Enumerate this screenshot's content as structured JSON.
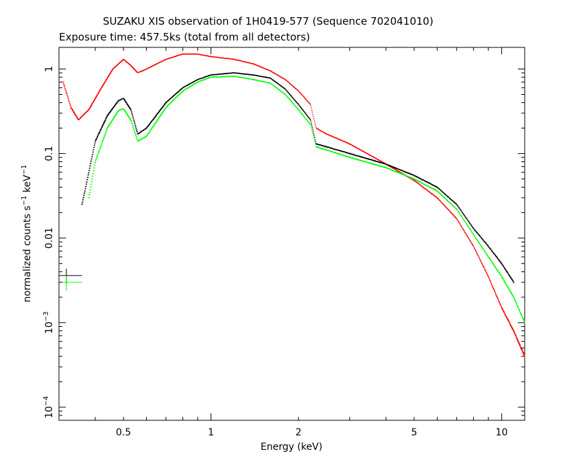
{
  "title": "SUZAKU XIS observation of 1H0419-577 (Sequence 702041010)",
  "subtitle": "Exposure time: 457.5ks (total from all detectors)",
  "chart_data": {
    "type": "scatter",
    "title": "SUZAKU XIS observation of 1H0419-577 (Sequence 702041010)",
    "subtitle": "Exposure time: 457.5ks (total from all detectors)",
    "xlabel": "Energy (keV)",
    "ylabel": "normalized counts s^-1 keV^-1",
    "xscale": "log",
    "yscale": "log",
    "xlim": [
      0.3,
      12
    ],
    "ylim": [
      7e-05,
      1.8
    ],
    "grid": false,
    "legend": "none",
    "x_ticks": [
      {
        "value": 0.5,
        "label": "0.5"
      },
      {
        "value": 1,
        "label": "1"
      },
      {
        "value": 2,
        "label": "2"
      },
      {
        "value": 5,
        "label": "5"
      },
      {
        "value": 10,
        "label": "10"
      }
    ],
    "y_ticks": [
      {
        "value": 1,
        "label": "1"
      },
      {
        "value": 0.1,
        "label": "0.1"
      },
      {
        "value": 0.01,
        "label": "0.01"
      },
      {
        "value": 0.001,
        "label": "10",
        "exp": "−3"
      },
      {
        "value": 0.0001,
        "label": "10",
        "exp": "−4"
      }
    ],
    "series": [
      {
        "color": "#ff0000",
        "x": [
          0.31,
          0.33,
          0.35,
          0.38,
          0.42,
          0.46,
          0.5,
          0.53,
          0.56,
          0.6,
          0.7,
          0.8,
          0.9,
          1.0,
          1.2,
          1.4,
          1.6,
          1.8,
          2.0,
          2.2,
          2.3,
          2.5,
          3.0,
          4.0,
          5.0,
          6.0,
          7.0,
          8.0,
          9.0,
          10.0,
          11.0,
          12.0
        ],
        "y": [
          0.7,
          0.35,
          0.25,
          0.33,
          0.6,
          1.0,
          1.3,
          1.1,
          0.9,
          1.0,
          1.3,
          1.5,
          1.5,
          1.4,
          1.3,
          1.15,
          0.95,
          0.75,
          0.55,
          0.38,
          0.2,
          0.17,
          0.13,
          0.075,
          0.048,
          0.03,
          0.017,
          0.008,
          0.0035,
          0.0015,
          0.0008,
          0.0004
        ]
      },
      {
        "color": "#000000",
        "x": [
          0.36,
          0.38,
          0.4,
          0.44,
          0.48,
          0.5,
          0.53,
          0.56,
          0.6,
          0.7,
          0.8,
          0.9,
          1.0,
          1.2,
          1.4,
          1.6,
          1.8,
          2.0,
          2.2,
          2.3,
          2.5,
          3.0,
          4.0,
          5.0,
          6.0,
          7.0,
          8.0,
          9.0,
          10.0,
          11.0
        ],
        "y": [
          0.025,
          0.06,
          0.14,
          0.28,
          0.42,
          0.45,
          0.33,
          0.17,
          0.2,
          0.4,
          0.6,
          0.75,
          0.85,
          0.9,
          0.85,
          0.78,
          0.58,
          0.38,
          0.25,
          0.13,
          0.12,
          0.1,
          0.075,
          0.055,
          0.04,
          0.025,
          0.013,
          0.008,
          0.005,
          0.003
        ]
      },
      {
        "color": "#00ff00",
        "x": [
          0.38,
          0.4,
          0.44,
          0.48,
          0.5,
          0.53,
          0.56,
          0.6,
          0.7,
          0.8,
          0.9,
          1.0,
          1.2,
          1.4,
          1.6,
          1.8,
          2.0,
          2.2,
          2.3,
          2.5,
          3.0,
          4.0,
          5.0,
          6.0,
          7.0,
          8.0,
          9.0,
          10.0,
          11.0,
          12.0
        ],
        "y": [
          0.03,
          0.08,
          0.2,
          0.32,
          0.34,
          0.25,
          0.14,
          0.16,
          0.35,
          0.55,
          0.7,
          0.8,
          0.82,
          0.75,
          0.68,
          0.5,
          0.33,
          0.22,
          0.12,
          0.11,
          0.09,
          0.068,
          0.05,
          0.036,
          0.022,
          0.011,
          0.006,
          0.0035,
          0.002,
          0.001
        ]
      }
    ],
    "annotations": [
      {
        "color": "#000000",
        "x_range": [
          0.3,
          0.36
        ],
        "y": 0.0036
      },
      {
        "color": "#00ff00",
        "x_range": [
          0.3,
          0.36
        ],
        "y": 0.003
      }
    ]
  }
}
